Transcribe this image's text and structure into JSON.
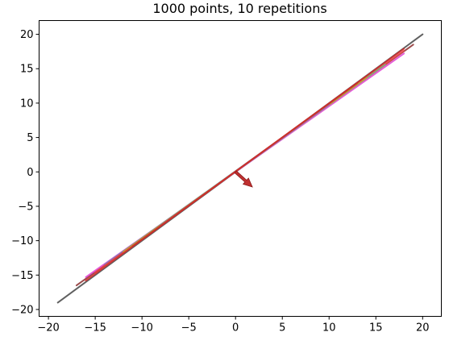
{
  "chart_data": {
    "type": "line",
    "title": "1000 points, 10 repetitions",
    "xlabel": "",
    "ylabel": "",
    "xlim": [
      -21.0,
      22.0
    ],
    "ylim": [
      -21.0,
      22.0
    ],
    "grid": false,
    "legend": "none",
    "x_ticks": [
      -20,
      -15,
      -10,
      -5,
      0,
      5,
      10,
      15,
      20
    ],
    "x_tick_labels": [
      "−20",
      "−15",
      "−10",
      "−5",
      "0",
      "5",
      "10",
      "15",
      "20"
    ],
    "y_ticks": [
      -20,
      -15,
      -10,
      -5,
      0,
      5,
      10,
      15,
      20
    ],
    "y_tick_labels": [
      "−20",
      "−15",
      "−10",
      "−5",
      "0",
      "5",
      "10",
      "15",
      "20"
    ],
    "series": [
      {
        "x": [
          -19.0,
          20.0
        ],
        "y": [
          -19.0,
          20.0
        ],
        "color": "#444444"
      },
      {
        "x": [
          -17.0,
          19.0
        ],
        "y": [
          -16.5,
          18.5
        ],
        "color": "#8b2d2d"
      },
      {
        "x": [
          -16.0,
          18.0
        ],
        "y": [
          -15.3,
          17.2
        ],
        "color": "#e040d0"
      },
      {
        "x": [
          -14.0,
          12.0
        ],
        "y": [
          -13.5,
          11.8
        ],
        "color": "#5b8fc9"
      },
      {
        "x": [
          -15.0,
          18.0
        ],
        "y": [
          -14.6,
          17.6
        ],
        "color": "#e8474a"
      },
      {
        "x": [
          -10.0,
          16.0
        ],
        "y": [
          -9.7,
          15.6
        ],
        "color": "#7fb37a"
      },
      {
        "x": [
          -12.0,
          14.0
        ],
        "y": [
          -11.6,
          13.7
        ],
        "color": "#c8a030"
      },
      {
        "x": [
          -8.0,
          10.0
        ],
        "y": [
          -7.8,
          9.8
        ],
        "color": "#9467bd"
      },
      {
        "x": [
          -11.0,
          13.0
        ],
        "y": [
          -10.8,
          12.9
        ],
        "color": "#a0522d"
      },
      {
        "x": [
          -16.0,
          18.0
        ],
        "y": [
          -15.8,
          17.9
        ],
        "color": "#d62728"
      }
    ],
    "arrow": {
      "x": 0.0,
      "y": 0.0,
      "dx": 1.8,
      "dy": -2.2,
      "color": "#c03030"
    }
  }
}
